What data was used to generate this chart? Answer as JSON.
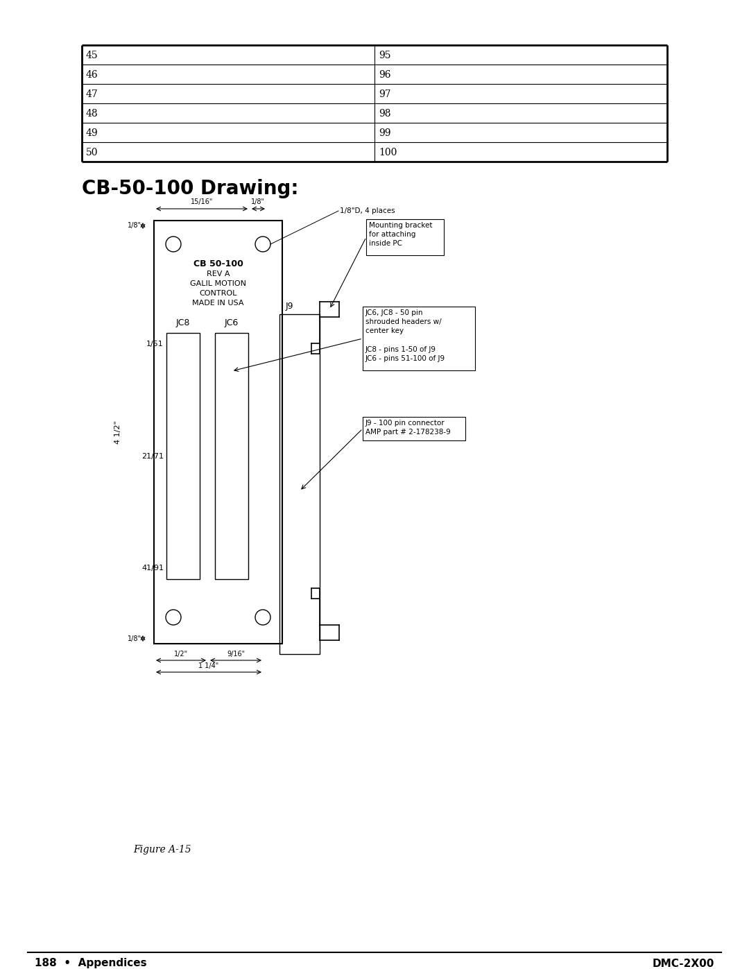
{
  "bg_color": "#ffffff",
  "table_rows": [
    [
      "45",
      "95"
    ],
    [
      "46",
      "96"
    ],
    [
      "47",
      "97"
    ],
    [
      "48",
      "98"
    ],
    [
      "49",
      "99"
    ],
    [
      "50",
      "100"
    ]
  ],
  "section_title": "CB-50-100 Drawing:",
  "figure_caption": "Figure A-15",
  "footer_left": "188  •  Appendices",
  "footer_right": "DMC-2X00",
  "board_label_line1": "CB 50-100",
  "board_label_line2": "REV A",
  "board_label_line3": "GALIL MOTION",
  "board_label_line4": "CONTROL",
  "board_label_line5": "MADE IN USA",
  "label_j9": "J9",
  "label_jc8": "JC8",
  "label_jc6": "JC6",
  "label_151": "1/51",
  "label_2171": "21/71",
  "label_4191": "41/91",
  "label_412": "4 1/2\"",
  "dim_top_left": "15/16\"",
  "dim_top_right": "1/8\"",
  "dim_corner": "1/8\"",
  "dim_holes": "1/8\"D, 4 places",
  "dim_bottom_left": "1/2\"",
  "dim_bottom_right": "9/16\"",
  "dim_bottom_total": "1 1/4\"",
  "dim_bottom_corner": "1/8\"",
  "annot_mounting": "Mounting bracket\nfor attaching\ninside PC",
  "annot_jc": "JC6, JC8 - 50 pin\nshrouded headers w/\ncenter key\n\nJC8 - pins 1-50 of J9\nJC6 - pins 51-100 of J9",
  "annot_j9": "J9 - 100 pin connector\nAMP part # 2-178238-9"
}
